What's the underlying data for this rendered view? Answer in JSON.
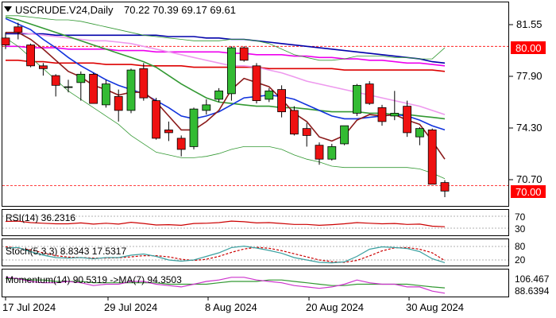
{
  "header": {
    "symbol": "USCRUDE.V24,Daily",
    "ohlc": "70.22 70.39 69.17 69.61"
  },
  "price_axis": {
    "ticks": [
      "81.55",
      "77.90",
      "74.30",
      "70.70"
    ],
    "ref_lines": [
      {
        "label": "80.00",
        "value": 80.0,
        "color": "#ff0000"
      },
      {
        "label": "70.00",
        "value": 70.0,
        "color": "#ff0000"
      }
    ]
  },
  "x_axis": {
    "labels": [
      "17 Jul 2024",
      "29 Jul 2024",
      "8 Aug 2024",
      "20 Aug 2024",
      "30 Aug 2024"
    ]
  },
  "indicators": {
    "rsi": {
      "label": "RSI(14) 36.2316",
      "axis": [
        "70",
        "30"
      ],
      "color": "#cc0000"
    },
    "stoch": {
      "label": "Stoch(5,3,3) 8.8343 17.5317",
      "axis": [
        "80",
        "20"
      ],
      "main_color": "#3aa0a0",
      "signal_color": "#cc0000"
    },
    "momentum": {
      "label": "Momentum(14) 90.5319  ->MA(7) 94.3503",
      "axis": [
        "106.467",
        "88.6394"
      ],
      "main_color": "#cc33cc",
      "signal_color": "#339933"
    }
  },
  "chart_data": {
    "type": "candlestick",
    "ylim": [
      68.6,
      83.1
    ],
    "colors": {
      "bull": "#33bb33",
      "bear": "#ee1111"
    },
    "candles": [
      {
        "o": 80.6,
        "h": 81.0,
        "l": 79.8,
        "c": 80.1
      },
      {
        "o": 81.4,
        "h": 81.7,
        "l": 80.5,
        "c": 81.0
      },
      {
        "o": 80.1,
        "h": 80.2,
        "l": 78.5,
        "c": 78.6
      },
      {
        "o": 78.6,
        "h": 78.8,
        "l": 77.9,
        "c": 78.4
      },
      {
        "o": 77.9,
        "h": 78.0,
        "l": 76.4,
        "c": 77.2
      },
      {
        "o": 77.1,
        "h": 77.6,
        "l": 76.7,
        "c": 77.1
      },
      {
        "o": 77.4,
        "h": 78.2,
        "l": 76.1,
        "c": 78.0
      },
      {
        "o": 78.0,
        "h": 78.1,
        "l": 75.9,
        "c": 75.9
      },
      {
        "o": 75.8,
        "h": 77.6,
        "l": 75.6,
        "c": 77.3
      },
      {
        "o": 76.4,
        "h": 76.9,
        "l": 74.6,
        "c": 75.4
      },
      {
        "o": 75.4,
        "h": 78.4,
        "l": 75.2,
        "c": 78.3
      },
      {
        "o": 78.4,
        "h": 78.8,
        "l": 76.1,
        "c": 76.3
      },
      {
        "o": 76.1,
        "h": 76.3,
        "l": 73.3,
        "c": 73.4
      },
      {
        "o": 74.0,
        "h": 74.6,
        "l": 73.2,
        "c": 73.8
      },
      {
        "o": 73.4,
        "h": 73.6,
        "l": 72.1,
        "c": 72.6
      },
      {
        "o": 72.8,
        "h": 75.6,
        "l": 72.6,
        "c": 75.5
      },
      {
        "o": 75.4,
        "h": 76.2,
        "l": 75.1,
        "c": 75.8
      },
      {
        "o": 76.2,
        "h": 77.0,
        "l": 76.0,
        "c": 76.8
      },
      {
        "o": 76.6,
        "h": 80.0,
        "l": 76.1,
        "c": 79.9
      },
      {
        "o": 79.9,
        "h": 80.0,
        "l": 78.9,
        "c": 79.0
      },
      {
        "o": 78.6,
        "h": 78.8,
        "l": 75.9,
        "c": 76.1
      },
      {
        "o": 76.2,
        "h": 77.0,
        "l": 76.0,
        "c": 76.8
      },
      {
        "o": 76.9,
        "h": 77.2,
        "l": 74.9,
        "c": 75.3
      },
      {
        "o": 75.4,
        "h": 75.7,
        "l": 73.6,
        "c": 73.7
      },
      {
        "o": 74.1,
        "h": 74.5,
        "l": 72.8,
        "c": 73.6
      },
      {
        "o": 72.9,
        "h": 73.1,
        "l": 71.5,
        "c": 71.9
      },
      {
        "o": 71.9,
        "h": 73.0,
        "l": 71.8,
        "c": 72.8
      },
      {
        "o": 73.0,
        "h": 74.3,
        "l": 72.9,
        "c": 74.3
      },
      {
        "o": 75.2,
        "h": 77.3,
        "l": 75.0,
        "c": 77.2
      },
      {
        "o": 77.3,
        "h": 77.5,
        "l": 75.8,
        "c": 75.9
      },
      {
        "o": 75.6,
        "h": 75.8,
        "l": 74.3,
        "c": 74.6
      },
      {
        "o": 75.0,
        "h": 76.8,
        "l": 74.7,
        "c": 75.2
      },
      {
        "o": 75.7,
        "h": 76.1,
        "l": 73.5,
        "c": 73.8
      },
      {
        "o": 73.5,
        "h": 74.2,
        "l": 72.9,
        "c": 74.1
      },
      {
        "o": 74.0,
        "h": 74.1,
        "l": 70.1,
        "c": 70.1
      },
      {
        "o": 70.22,
        "h": 70.39,
        "l": 69.17,
        "c": 69.61
      }
    ],
    "overlays": [
      {
        "color": "#0000aa",
        "values": [
          80.9,
          80.9,
          80.9,
          80.9,
          80.8,
          80.8,
          80.8,
          80.8,
          80.8,
          80.8,
          80.8,
          80.8,
          80.8,
          80.7,
          80.7,
          80.7,
          80.6,
          80.6,
          80.5,
          80.5,
          80.4,
          80.3,
          80.2,
          80.1,
          80.0,
          79.9,
          79.8,
          79.7,
          79.6,
          79.5,
          79.4,
          79.3,
          79.2,
          79.1,
          78.9,
          78.8
        ]
      },
      {
        "color": "#ee00ee",
        "values": [
          80.0,
          80.0,
          79.9,
          79.9,
          79.9,
          79.8,
          79.8,
          79.8,
          79.8,
          79.7,
          79.7,
          79.7,
          79.6,
          79.6,
          79.6,
          79.6,
          79.6,
          79.6,
          79.5,
          79.5,
          79.4,
          79.4,
          79.4,
          79.3,
          79.3,
          79.2,
          79.2,
          79.1,
          79.1,
          79.0,
          79.0,
          78.9,
          78.8,
          78.8,
          78.7,
          78.6
        ]
      },
      {
        "color": "#dd0000",
        "values": [
          79.0,
          79.0,
          78.9,
          78.9,
          78.8,
          78.8,
          78.8,
          78.8,
          78.7,
          78.7,
          78.7,
          78.6,
          78.6,
          78.6,
          78.6,
          78.5,
          78.5,
          78.5,
          78.5,
          78.5,
          78.5,
          78.4,
          78.4,
          78.4,
          78.4,
          78.4,
          78.4,
          78.3,
          78.3,
          78.3,
          78.3,
          78.3,
          78.3,
          78.3,
          78.3,
          78.2
        ]
      },
      {
        "color": "#ee99ee",
        "values": [
          81.0,
          81.0,
          80.9,
          80.8,
          80.7,
          80.6,
          80.5,
          80.4,
          80.4,
          80.3,
          80.2,
          80.0,
          79.8,
          79.6,
          79.4,
          79.2,
          79.0,
          78.8,
          78.6,
          78.6,
          78.5,
          78.3,
          78.1,
          77.8,
          77.5,
          77.3,
          77.1,
          76.9,
          76.7,
          76.5,
          76.3,
          76.1,
          75.9,
          75.7,
          75.4,
          75.1
        ]
      },
      {
        "color": "#339933",
        "values": [
          82.1,
          81.9,
          81.6,
          81.3,
          81.0,
          80.7,
          80.4,
          80.1,
          79.8,
          79.5,
          79.2,
          78.9,
          78.5,
          77.9,
          77.3,
          76.8,
          76.3,
          76.0,
          75.9,
          75.8,
          75.7,
          75.7,
          75.6,
          75.6,
          75.5,
          75.4,
          75.3,
          75.3,
          75.3,
          75.2,
          75.2,
          75.1,
          75.1,
          75.0,
          74.9,
          74.8
        ]
      },
      {
        "color": "#1133dd",
        "values": [
          82.0,
          81.6,
          81.2,
          80.5,
          79.9,
          79.2,
          78.6,
          78.1,
          77.6,
          77.2,
          76.9,
          76.6,
          76.1,
          75.6,
          75.0,
          74.8,
          75.0,
          75.3,
          75.8,
          76.3,
          76.4,
          76.5,
          76.4,
          76.2,
          75.8,
          75.4,
          75.0,
          74.8,
          74.8,
          74.9,
          75.0,
          75.1,
          75.0,
          74.7,
          74.3,
          74.0
        ]
      },
      {
        "color": "#8b1a1a",
        "values": [
          81.0,
          81.0,
          80.5,
          79.8,
          79.0,
          78.2,
          77.8,
          77.2,
          76.9,
          76.5,
          76.7,
          76.7,
          76.0,
          75.0,
          74.0,
          74.0,
          74.6,
          75.4,
          76.9,
          77.7,
          77.4,
          77.1,
          76.2,
          75.2,
          74.6,
          73.5,
          73.2,
          73.6,
          74.7,
          75.1,
          75.0,
          75.1,
          74.7,
          74.4,
          73.2,
          71.9
        ]
      },
      {
        "color": "#339933",
        "width": 0.8,
        "values": [
          82.2,
          82.2,
          82.1,
          82.0,
          81.9,
          81.9,
          81.8,
          81.6,
          81.4,
          81.2,
          81.0,
          80.8,
          80.7,
          80.6,
          80.5,
          80.4,
          80.4,
          80.4,
          80.5,
          80.5,
          80.4,
          80.2,
          79.8,
          79.4,
          79.2,
          79.0,
          79.0,
          79.1,
          79.3,
          79.3,
          79.3,
          79.2,
          79.2,
          79.1,
          79.1,
          79.9
        ]
      },
      {
        "color": "#339933",
        "width": 0.8,
        "values": [
          80.6,
          80.0,
          79.2,
          78.4,
          77.6,
          76.8,
          76.2,
          75.6,
          75.0,
          74.4,
          73.6,
          73.0,
          72.4,
          72.2,
          72.0,
          72.0,
          72.1,
          72.3,
          72.6,
          72.8,
          72.8,
          72.8,
          72.6,
          72.2,
          71.9,
          71.7,
          71.4,
          71.3,
          71.3,
          71.3,
          71.3,
          71.3,
          71.3,
          71.2,
          70.9,
          70.5
        ]
      }
    ],
    "rsi_values": [
      54,
      55,
      50,
      48,
      46,
      46,
      49,
      45,
      48,
      45,
      51,
      47,
      42,
      43,
      41,
      47,
      48,
      50,
      55,
      53,
      49,
      50,
      47,
      44,
      44,
      41,
      43,
      46,
      50,
      48,
      46,
      47,
      44,
      45,
      38,
      36.2
    ],
    "rsi_range": [
      10,
      90
    ],
    "stoch_main": [
      70,
      72,
      55,
      40,
      30,
      28,
      30,
      25,
      30,
      30,
      40,
      45,
      35,
      20,
      15,
      20,
      35,
      50,
      72,
      78,
      70,
      60,
      48,
      30,
      20,
      10,
      8,
      12,
      35,
      65,
      75,
      72,
      68,
      55,
      25,
      8.8
    ],
    "stoch_signal": [
      75,
      70,
      62,
      50,
      38,
      32,
      30,
      28,
      28,
      29,
      33,
      38,
      38,
      33,
      23,
      18,
      23,
      35,
      52,
      66,
      73,
      69,
      59,
      46,
      33,
      20,
      13,
      10,
      18,
      37,
      58,
      71,
      72,
      65,
      50,
      17.5
    ],
    "momentum_values": [
      102,
      101,
      99,
      98,
      98,
      99,
      98,
      96,
      97,
      97,
      99,
      99,
      97,
      96,
      95,
      97,
      99,
      100,
      102,
      102,
      100,
      99,
      98,
      96,
      95,
      94,
      95,
      97,
      100,
      98,
      97,
      97,
      95,
      95,
      92,
      90.5
    ],
    "momentum_ma": [
      101,
      101,
      100,
      100,
      99,
      99,
      99,
      98,
      98,
      98,
      98,
      98,
      98,
      97,
      97,
      97,
      97,
      98,
      99,
      99,
      99,
      100,
      100,
      99,
      98,
      97,
      96,
      96,
      97,
      97,
      97,
      97,
      97,
      96,
      95,
      94.35
    ],
    "momentum_range": [
      88.64,
      106.467
    ]
  }
}
